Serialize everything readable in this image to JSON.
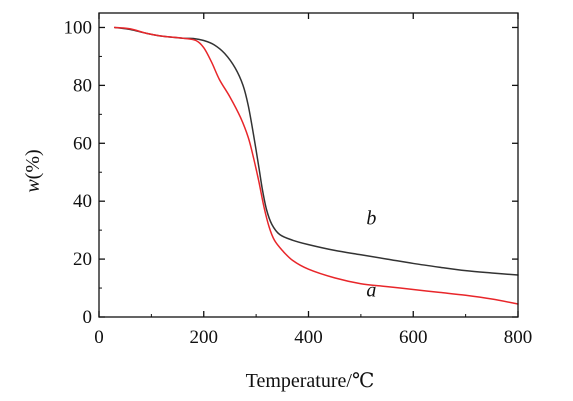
{
  "chart_data": {
    "type": "line",
    "title": "",
    "xlabel": "Temperature/℃",
    "ylabel_var": "w",
    "ylabel_rest": "(%)",
    "xlim": [
      0,
      800
    ],
    "ylim": [
      0,
      105
    ],
    "xticks": [
      0,
      200,
      400,
      600,
      800
    ],
    "yticks": [
      0,
      20,
      40,
      60,
      80,
      100
    ],
    "xtick_labels": [
      "0",
      "200",
      "400",
      "600",
      "800"
    ],
    "ytick_labels": [
      "0",
      "20",
      "40",
      "60",
      "80",
      "100"
    ],
    "grid": false,
    "series": [
      {
        "name": "a",
        "color": "#e8262a",
        "points": [
          [
            30,
            100
          ],
          [
            60,
            99.5
          ],
          [
            90,
            98
          ],
          [
            120,
            97
          ],
          [
            160,
            96.3
          ],
          [
            185,
            95.5
          ],
          [
            200,
            93
          ],
          [
            215,
            88
          ],
          [
            230,
            82
          ],
          [
            250,
            76
          ],
          [
            270,
            69
          ],
          [
            285,
            62
          ],
          [
            295,
            55
          ],
          [
            305,
            47
          ],
          [
            315,
            38
          ],
          [
            325,
            31
          ],
          [
            335,
            26.5
          ],
          [
            350,
            23
          ],
          [
            370,
            19.5
          ],
          [
            400,
            16.5
          ],
          [
            450,
            13.5
          ],
          [
            500,
            11.5
          ],
          [
            550,
            10.5
          ],
          [
            600,
            9.5
          ],
          [
            650,
            8.5
          ],
          [
            700,
            7.5
          ],
          [
            750,
            6.2
          ],
          [
            800,
            4.5
          ]
        ]
      },
      {
        "name": "b",
        "color": "#333333",
        "points": [
          [
            30,
            100
          ],
          [
            60,
            99.3
          ],
          [
            90,
            98
          ],
          [
            120,
            97
          ],
          [
            160,
            96.3
          ],
          [
            180,
            96.2
          ],
          [
            200,
            95.5
          ],
          [
            220,
            94
          ],
          [
            240,
            91
          ],
          [
            260,
            86
          ],
          [
            275,
            80
          ],
          [
            285,
            73
          ],
          [
            295,
            63
          ],
          [
            305,
            52
          ],
          [
            312,
            44
          ],
          [
            320,
            37
          ],
          [
            330,
            32
          ],
          [
            345,
            28.5
          ],
          [
            370,
            26.5
          ],
          [
            400,
            25
          ],
          [
            450,
            23
          ],
          [
            500,
            21.5
          ],
          [
            550,
            20
          ],
          [
            600,
            18.5
          ],
          [
            650,
            17.2
          ],
          [
            700,
            16
          ],
          [
            750,
            15.2
          ],
          [
            800,
            14.5
          ]
        ]
      }
    ]
  }
}
